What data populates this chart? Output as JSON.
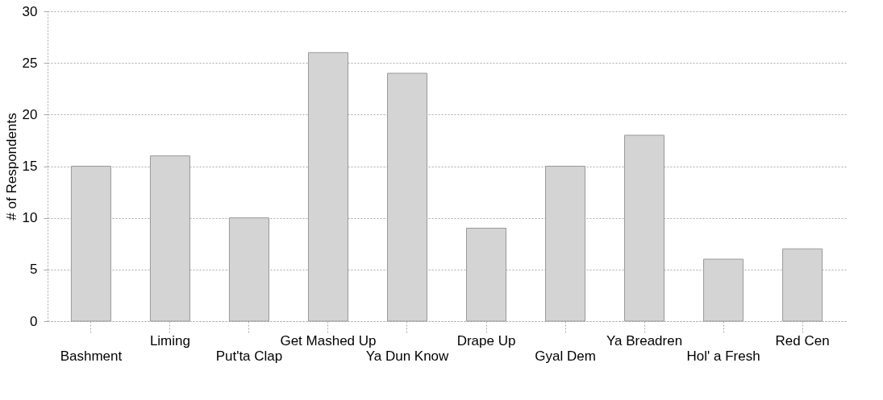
{
  "chart_data": {
    "type": "bar",
    "ylabel": "# of Respondents",
    "categories": [
      "Bashment",
      "Liming",
      "Put'ta Clap",
      "Get Mashed Up",
      "Ya Dun Know",
      "Drape Up",
      "Gyal Dem",
      "Ya Breadren",
      "Hol' a Fresh",
      "Red Cen"
    ],
    "values": [
      15,
      16,
      10,
      26,
      24,
      9,
      15,
      18,
      6,
      7
    ],
    "color": "#d4d4d4",
    "ylim": [
      0,
      30
    ],
    "yticks": [
      0,
      5,
      10,
      15,
      20,
      25,
      30
    ],
    "grid": "y"
  }
}
